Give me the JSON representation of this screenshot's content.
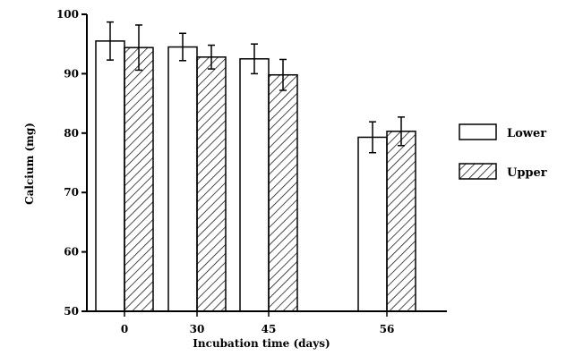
{
  "chart_data": {
    "type": "bar",
    "title": "",
    "xlabel": "Incubation time (days)",
    "ylabel": "Calcium (mg)",
    "categories": [
      "0",
      "30",
      "45",
      "56"
    ],
    "ylim": [
      50,
      100
    ],
    "yticks": [
      50,
      60,
      70,
      80,
      90,
      100
    ],
    "grid": false,
    "legend_position": "right",
    "series": [
      {
        "name": "Lower",
        "pattern": "open",
        "values": [
          95.5,
          94.5,
          92.5,
          79.3
        ],
        "errors": [
          3.2,
          2.3,
          2.5,
          2.6
        ]
      },
      {
        "name": "Upper",
        "pattern": "hatched",
        "values": [
          94.4,
          92.8,
          89.8,
          80.3
        ],
        "errors": [
          3.8,
          2.0,
          2.6,
          2.4
        ]
      }
    ]
  },
  "colors": {
    "ink": "#000000",
    "background": "#ffffff"
  }
}
